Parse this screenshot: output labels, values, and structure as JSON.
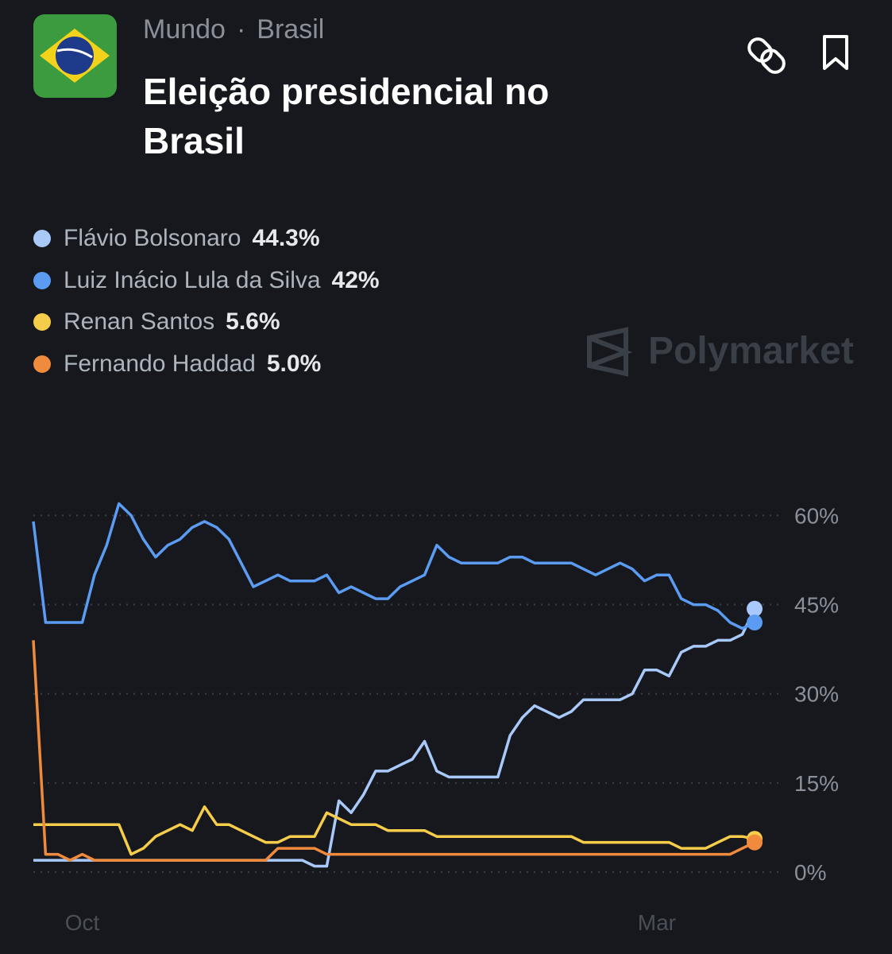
{
  "header": {
    "breadcrumb": [
      "Mundo",
      "Brasil"
    ],
    "title": "Eleição presidencial no Brasil",
    "watermark": "Polymarket"
  },
  "chart_data": {
    "type": "line",
    "categories": [
      null,
      null,
      null,
      null,
      "Oct",
      null,
      null,
      null,
      null,
      null,
      null,
      null,
      null,
      null,
      null,
      null,
      null,
      null,
      null,
      null,
      null,
      null,
      null,
      null,
      null,
      null,
      null,
      null,
      null,
      null,
      null,
      null,
      null,
      null,
      null,
      null,
      null,
      null,
      null,
      null,
      null,
      null,
      null,
      null,
      null,
      null,
      null,
      null,
      null,
      null,
      null,
      "Mar",
      null,
      null,
      null,
      null,
      null,
      null,
      null,
      null
    ],
    "series": [
      {
        "name": "Flávio Bolsonaro",
        "color": "#a9c9fa",
        "current": {
          "value": 44.3,
          "label": "44.3%"
        },
        "values": [
          2,
          2,
          2,
          2,
          2,
          2,
          2,
          2,
          2,
          2,
          2,
          2,
          2,
          2,
          2,
          2,
          2,
          2,
          2,
          2,
          2,
          2,
          2,
          1,
          1,
          12,
          10,
          13,
          17,
          17,
          18,
          19,
          22,
          17,
          16,
          16,
          16,
          16,
          16,
          23,
          26,
          28,
          27,
          26,
          27,
          29,
          29,
          29,
          29,
          30,
          34,
          34,
          33,
          37,
          38,
          38,
          39,
          39,
          40,
          44.3
        ]
      },
      {
        "name": "Luiz Inácio Lula da Silva",
        "color": "#5b9cf2",
        "current": {
          "value": 42,
          "label": "42%"
        },
        "values": [
          59,
          42,
          42,
          42,
          42,
          50,
          55,
          62,
          60,
          56,
          53,
          55,
          56,
          58,
          59,
          58,
          56,
          52,
          48,
          49,
          50,
          49,
          49,
          49,
          50,
          47,
          48,
          47,
          46,
          46,
          48,
          49,
          50,
          55,
          53,
          52,
          52,
          52,
          52,
          53,
          53,
          52,
          52,
          52,
          52,
          51,
          50,
          51,
          52,
          51,
          49,
          50,
          50,
          46,
          45,
          45,
          44,
          42,
          41,
          42
        ]
      },
      {
        "name": "Renan Santos",
        "color": "#f6cd4a",
        "current": {
          "value": 5.6,
          "label": "5.6%"
        },
        "values": [
          8,
          8,
          8,
          8,
          8,
          8,
          8,
          8,
          3,
          4,
          6,
          7,
          8,
          7,
          11,
          8,
          8,
          7,
          6,
          5,
          5,
          6,
          6,
          6,
          10,
          9,
          8,
          8,
          8,
          7,
          7,
          7,
          7,
          6,
          6,
          6,
          6,
          6,
          6,
          6,
          6,
          6,
          6,
          6,
          6,
          5,
          5,
          5,
          5,
          5,
          5,
          5,
          5,
          4,
          4,
          4,
          5,
          6,
          6,
          5.6
        ]
      },
      {
        "name": "Fernando Haddad",
        "color": "#f08a3c",
        "current": {
          "value": 5.0,
          "label": "5.0%"
        },
        "values": [
          39,
          3,
          3,
          2,
          3,
          2,
          2,
          2,
          2,
          2,
          2,
          2,
          2,
          2,
          2,
          2,
          2,
          2,
          2,
          2,
          4,
          4,
          4,
          4,
          3,
          3,
          3,
          3,
          3,
          3,
          3,
          3,
          3,
          3,
          3,
          3,
          3,
          3,
          3,
          3,
          3,
          3,
          3,
          3,
          3,
          3,
          3,
          3,
          3,
          3,
          3,
          3,
          3,
          3,
          3,
          3,
          3,
          3,
          4,
          5.0
        ]
      }
    ],
    "ylim": [
      -1,
      64
    ],
    "yticks": [
      {
        "value": 0,
        "label": "0%"
      },
      {
        "value": 15,
        "label": "15%"
      },
      {
        "value": 30,
        "label": "30%"
      },
      {
        "value": 45,
        "label": "45%"
      },
      {
        "value": 60,
        "label": "60%"
      }
    ],
    "grid": true
  }
}
